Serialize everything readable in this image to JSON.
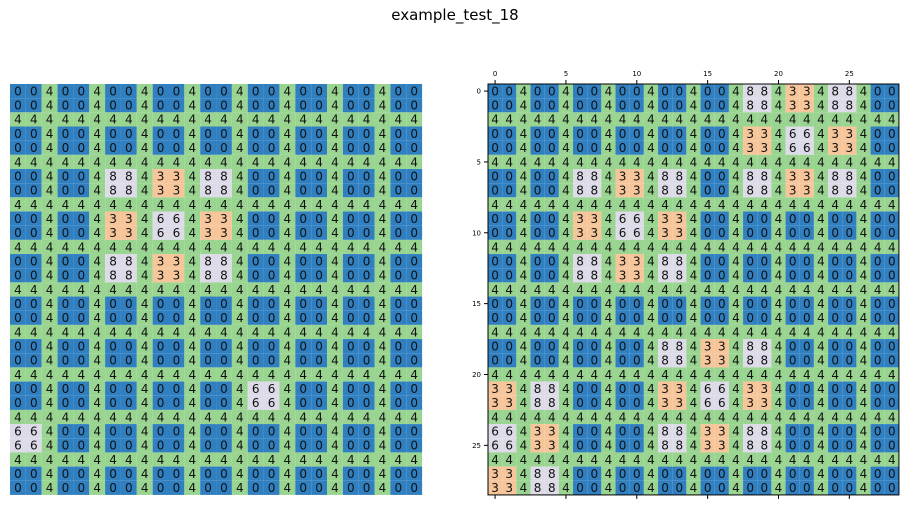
{
  "title": "example_test_18",
  "colors": {
    "0": "#2f7fc1",
    "4": "#9ad491",
    "8": "#dcdbe7",
    "3": "#f7c59a",
    "6": "#dcdbe7",
    "gridline": "#222222"
  },
  "left_panel": {
    "grid": [
      "00400400400400400400400400",
      "00400400400400400400400400",
      "44444444444444444444444444",
      "00400400400400400400400400",
      "00400400400400400400400400",
      "44444444444444444444444444",
      "00400488433488400400400400",
      "00400488433488400400400400",
      "44444444444444444444444444",
      "00400433466433400400400400",
      "00400433466433400400400400",
      "44444444444444444444444444",
      "00400488433488400400400400",
      "00400488433488400400400400",
      "44444444444444444444444444",
      "00400400400400400400400400",
      "00400400400400400400400400",
      "44444444444444444444444444",
      "00400400400400400400400400",
      "00400400400400400400400400",
      "44444444444444444444444444",
      "00400400400400466400400400",
      "00400400400400466400400400",
      "44444444444444444444444444",
      "66400400400400400400400400",
      "66400400400400400400400400",
      "44444444444444444444444444",
      "00400400400400400400400400",
      "00400400400400400400400400"
    ]
  },
  "right_panel": {
    "xticks": [
      "0",
      "5",
      "10",
      "15",
      "20",
      "25"
    ],
    "yticks": [
      "0",
      "5",
      "10",
      "15",
      "20",
      "25"
    ],
    "grid": [
      "00400400400400400488433488400",
      "00400400400400400488433488400",
      "44444444444444444444444444444",
      "00400400400400400433466433400",
      "00400400400400400433466433400",
      "44444444444444444444444444444",
      "00400488433488400488433488400",
      "00400488433488400488433488400",
      "44444444444444444444444444444",
      "00400433466433400400400400400",
      "00400433466433400400400400400",
      "44444444444444444444444444444",
      "00400488433488400400400400400",
      "00400488433488400400400400400",
      "44444444444444444444444444444",
      "00400400400400400400400400400",
      "00400400400400400400400400400",
      "44444444444444444444444444444",
      "00400400400488433488400400400",
      "00400400400488433488400400400",
      "44444444444444444444444444444",
      "33488400400433466433400400400",
      "33488400400433466433400400400",
      "44444444444444444444444444444",
      "66433400400488433488400400400",
      "66433400400488433488400400400",
      "44444444444444444444444444444",
      "33488400400400400400400400400",
      "33488400400400400400400400400"
    ]
  }
}
